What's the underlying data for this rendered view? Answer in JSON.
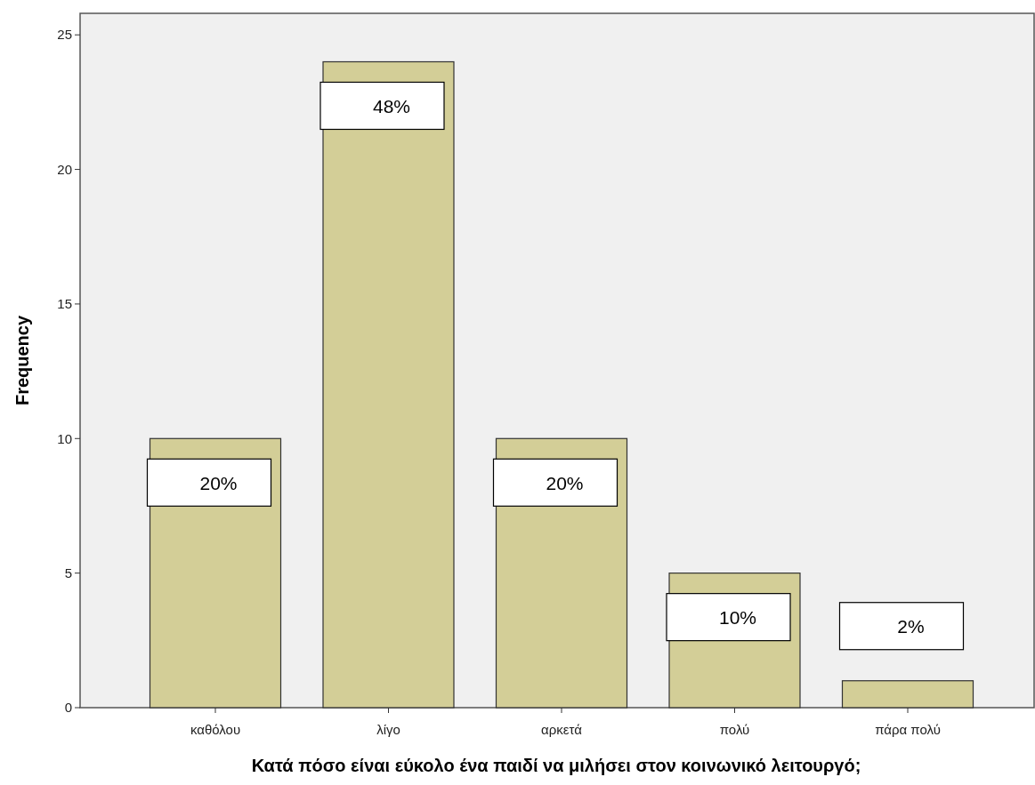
{
  "chart_data": {
    "type": "bar",
    "xlabel": "Κατά πόσο είναι εύκολο ένα παιδί να μιλήσει στον κοινωνικό λειτουργό;",
    "ylabel": "Frequency",
    "categories": [
      "καθόλου",
      "λίγο",
      "αρκετά",
      "πολύ",
      "πάρα πολύ"
    ],
    "values": [
      10,
      24,
      10,
      5,
      1
    ],
    "annotations": [
      {
        "text": "20%",
        "x": "καθόλου",
        "y": 10
      },
      {
        "text": "48%",
        "x": "λίγο",
        "y": 24
      },
      {
        "text": "20%",
        "x": "αρκετά",
        "y": 10
      },
      {
        "text": "10%",
        "x": "πολύ",
        "y": 5
      },
      {
        "text": "2%",
        "x": "πάρα πολύ",
        "y": 1
      }
    ],
    "color": "#d3ce97",
    "ylim": [
      0,
      25.8
    ],
    "yticks": [
      0,
      5,
      10,
      15,
      20,
      25
    ],
    "grid": false
  }
}
